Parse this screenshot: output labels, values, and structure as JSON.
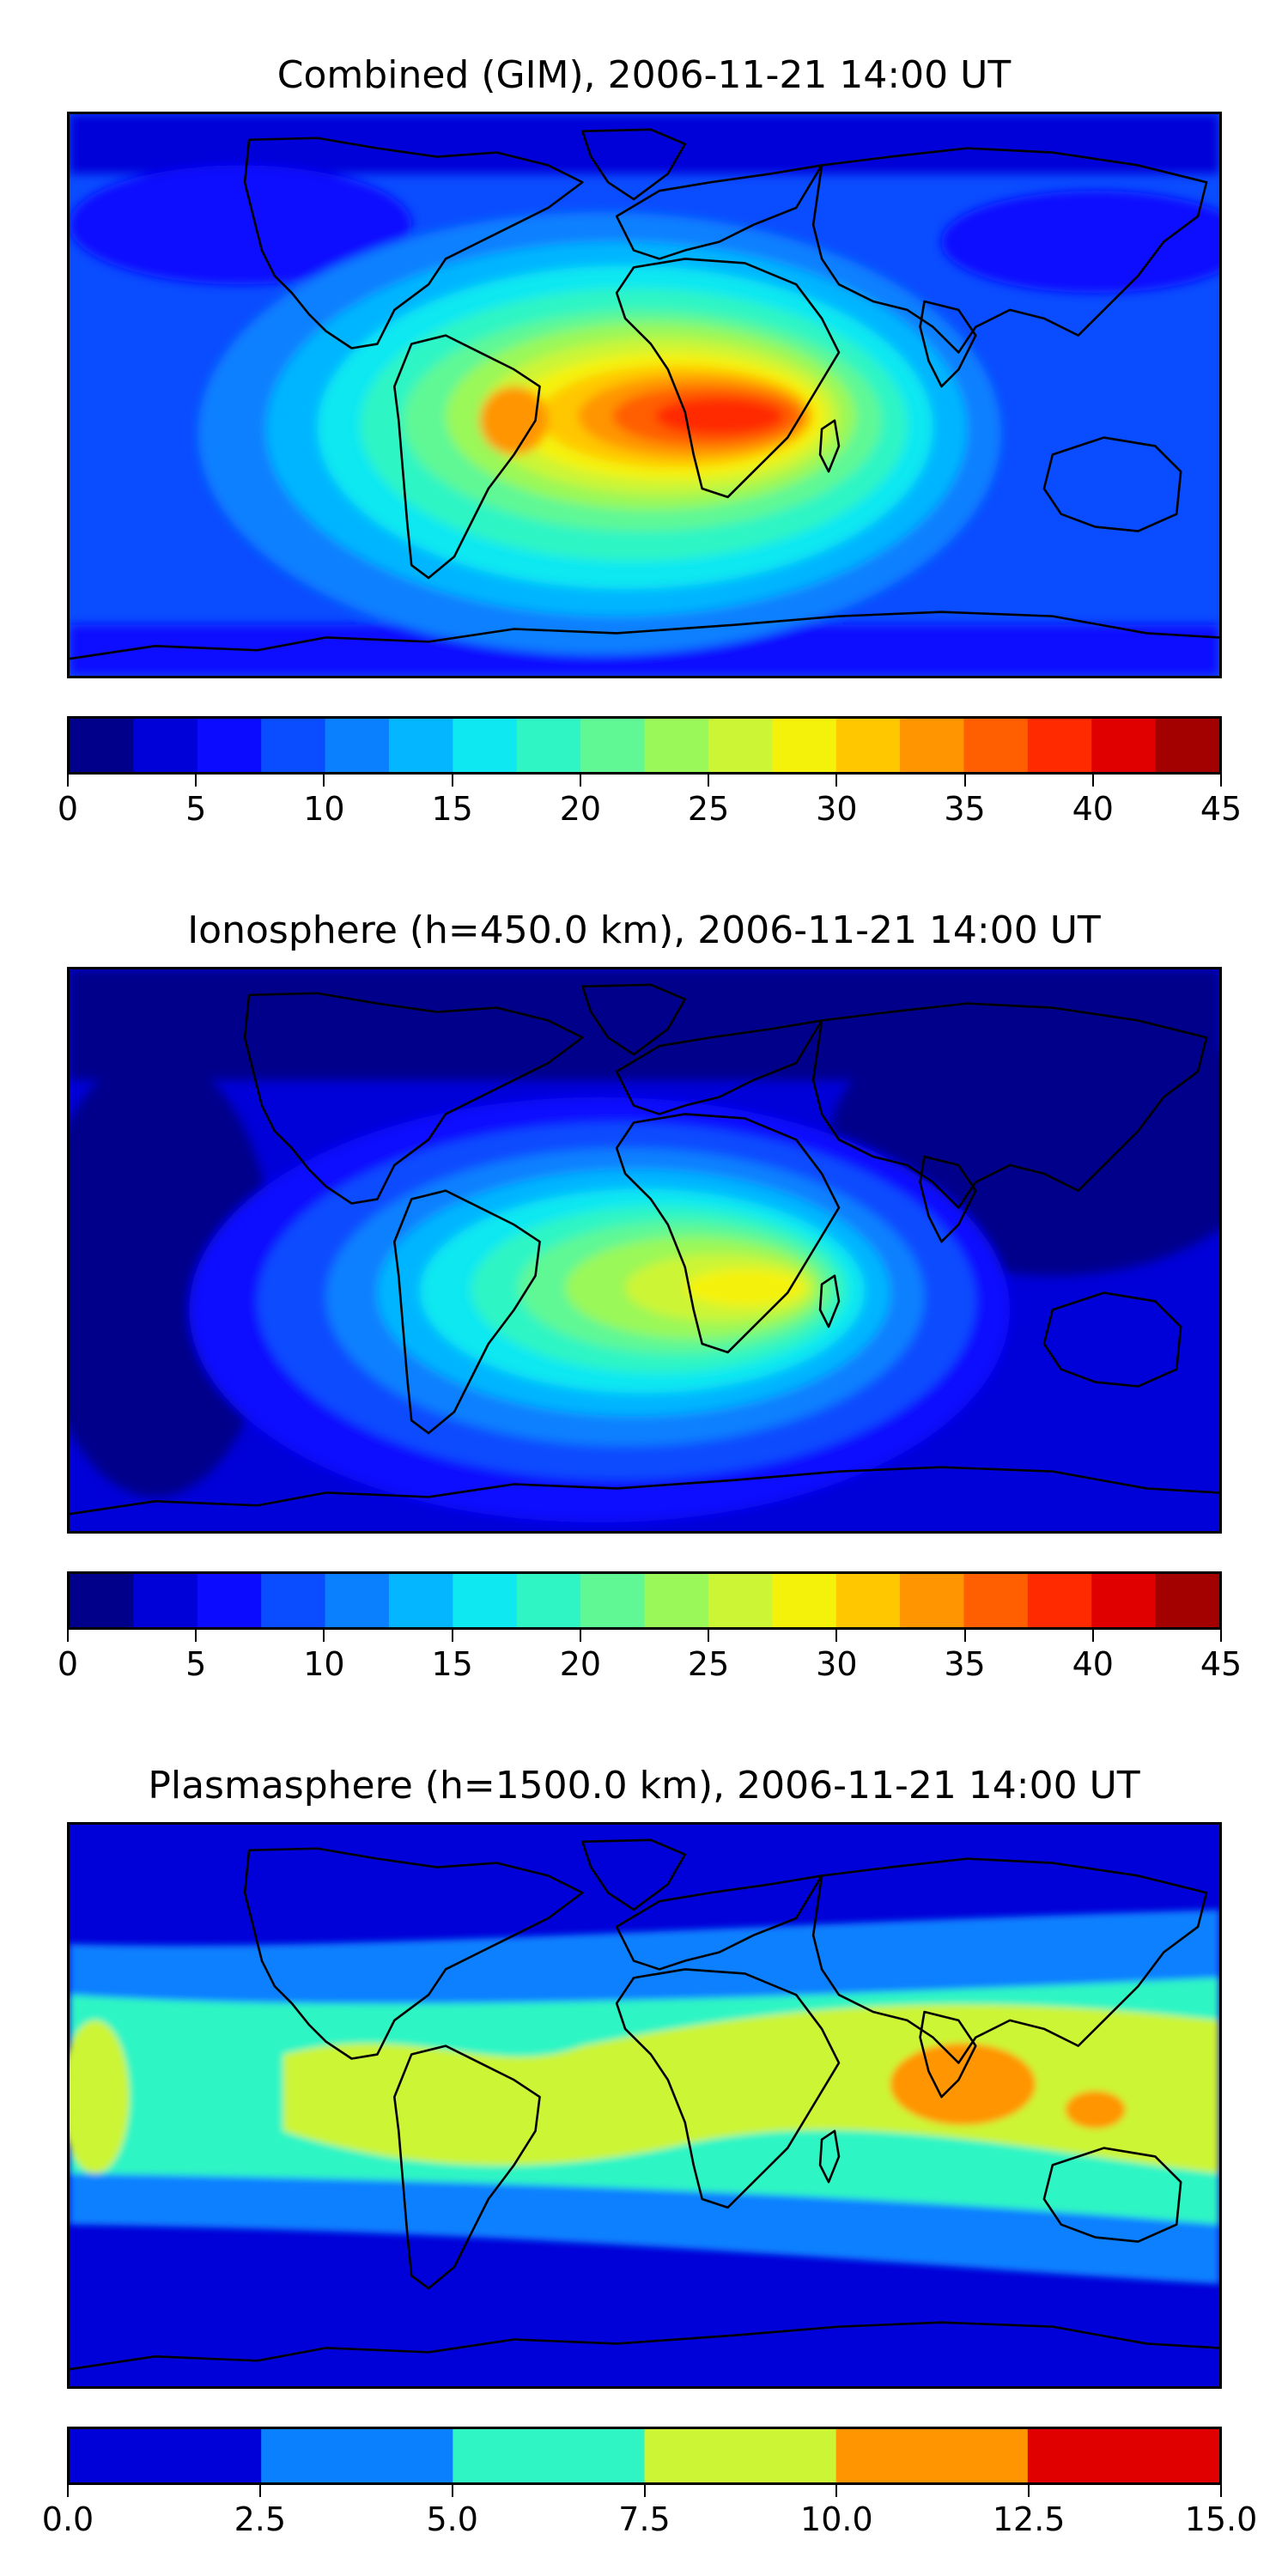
{
  "chart_data": [
    {
      "type": "heatmap",
      "title": "Combined (GIM), 2006-11-21 14:00 UT",
      "colorbar": {
        "ticks": [
          "0",
          "5",
          "10",
          "15",
          "20",
          "25",
          "30",
          "35",
          "40",
          "45"
        ],
        "range": [
          0,
          45
        ],
        "step": 2.5,
        "colors": [
          "#00008b",
          "#0000d8",
          "#0b0bff",
          "#0a4cff",
          "#0a80ff",
          "#04b5ff",
          "#0de8f1",
          "#2ff5c4",
          "#5ff895",
          "#9af859",
          "#ccf536",
          "#f4f20a",
          "#ffc700",
          "#ff9500",
          "#ff5f00",
          "#ff2a00",
          "#e00000",
          "#a30000"
        ]
      },
      "peak_region": "southern Africa / South Atlantic",
      "peak_value_approx": 40
    },
    {
      "type": "heatmap",
      "title": "Ionosphere  (h=450.0 km), 2006-11-21 14:00 UT",
      "colorbar": {
        "ticks": [
          "0",
          "5",
          "10",
          "15",
          "20",
          "25",
          "30",
          "35",
          "40",
          "45"
        ],
        "range": [
          0,
          45
        ],
        "step": 2.5,
        "colors": [
          "#00008b",
          "#0000d8",
          "#0b0bff",
          "#0a4cff",
          "#0a80ff",
          "#04b5ff",
          "#0de8f1",
          "#2ff5c4",
          "#5ff895",
          "#9af859",
          "#ccf536",
          "#f4f20a",
          "#ffc700",
          "#ff9500",
          "#ff5f00",
          "#ff2a00",
          "#e00000",
          "#a30000"
        ]
      },
      "peak_region": "southern Africa",
      "peak_value_approx": 30
    },
    {
      "type": "heatmap",
      "title": "Plasmasphere (h=1500.0 km), 2006-11-21 14:00 UT",
      "colorbar": {
        "ticks": [
          "0.0",
          "2.5",
          "5.0",
          "7.5",
          "10.0",
          "12.5",
          "15.0"
        ],
        "range": [
          0,
          15
        ],
        "step": 2.5,
        "colors": [
          "#0000d8",
          "#0a80ff",
          "#2ff5c4",
          "#ccf536",
          "#ff9500",
          "#e00000"
        ]
      },
      "peak_region": "Bay of Bengal / Indonesia",
      "peak_value_approx": 11
    }
  ]
}
